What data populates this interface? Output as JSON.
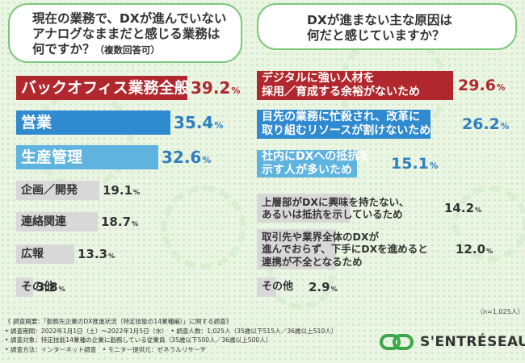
{
  "questions": {
    "left_line1": "現在の業務で、DXが進んでいない",
    "left_line2": "アナログなままだと感じる業務は",
    "left_line3": "何ですか？",
    "left_note": "（複数回答可）",
    "right_line1": "DXが進まない主な原因は",
    "right_line2": "何だと感じていますか？"
  },
  "chart_data": [
    {
      "type": "bar",
      "title": "現在の業務で、DXが進んでいないアナログなままだと感じる業務は何ですか？（複数回答可）",
      "categories": [
        "バックオフィス業務全般",
        "営業",
        "生産管理",
        "企画／開発",
        "連絡関連",
        "広報",
        "その他"
      ],
      "values": [
        39.2,
        35.4,
        32.6,
        19.1,
        18.7,
        13.3,
        3.8
      ],
      "unit": "%",
      "xlim": [
        0,
        50
      ]
    },
    {
      "type": "bar",
      "title": "DXが進まない主な原因は何だと感じていますか？",
      "categories": [
        [
          "デジタルに強い人材を",
          "採用／育成する余裕がないため"
        ],
        [
          "目先の業務に忙殺され、改革に",
          "取り組むリソースが割けないため"
        ],
        [
          "社内にDXへの抵抗を",
          "示す人が多いため"
        ],
        [
          "上層部がDXに興味を持たない、",
          "あるいは抵抗を示しているため"
        ],
        [
          "取引先や業界全体のDXが",
          "進んでおらず、下手にDXを進めると",
          "連携が不全となるため"
        ],
        [
          "その他"
        ]
      ],
      "values": [
        29.6,
        26.2,
        15.1,
        14.2,
        12.0,
        2.9
      ],
      "unit": "%",
      "xlim": [
        0,
        50
      ],
      "sample": "（n=1,025人）"
    }
  ],
  "colors": {
    "red": "#b0282d",
    "blue": "#2f8ad0",
    "lightblue": "#5fb3df",
    "grey": "#d8d8d8",
    "green": "#7cc87a"
  },
  "notes": [
    "《 調査概要：「勤務先企業のDX推進状況（特定技能の14業種編）」に関する調査》",
    "• 調査期間：2022年1月1日（土）〜2022年1月5日（水）　• 調査人数：1,025人（35歳以下515人／36歳以上510人）",
    "• 調査対象：特定技能14業種の企業に勤務している従業員（35歳以下500人／36歳以上500人）",
    "• 調査方法：インターネット調査　• モニター提供元：ゼネラルリサーチ"
  ],
  "logo": {
    "text": "S'ENTRÉSEAU"
  }
}
